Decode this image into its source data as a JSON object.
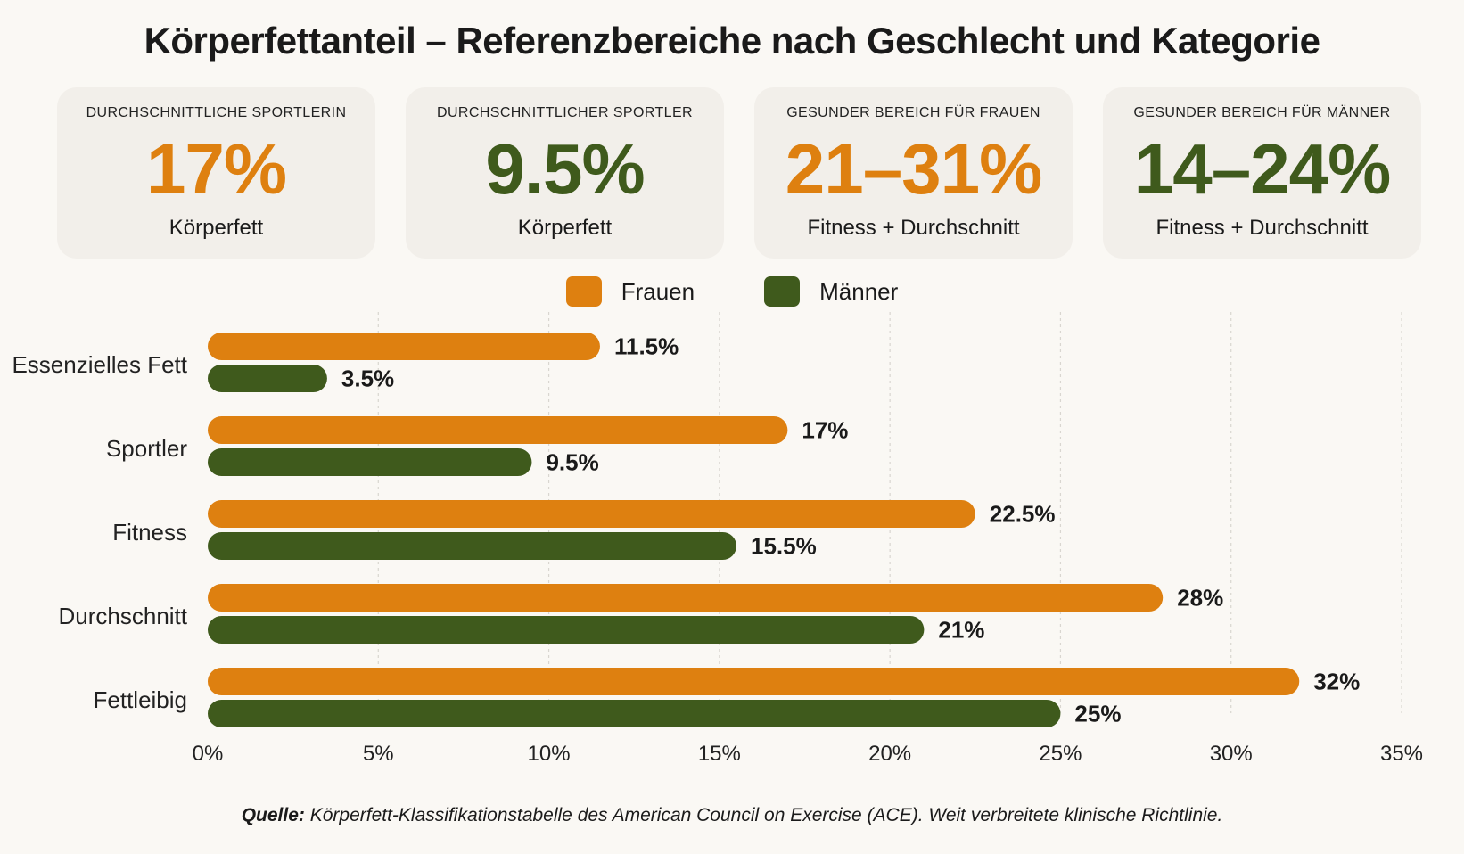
{
  "title": "Körperfettanteil – Referenzbereiche nach Geschlecht und Kategorie",
  "cards": [
    {
      "label": "DURCHSCHNITTLICHE SPORTLERIN",
      "value": "17%",
      "sub": "Körperfett",
      "color": "#de8010"
    },
    {
      "label": "DURCHSCHNITTLICHER SPORTLER",
      "value": "9.5%",
      "sub": "Körperfett",
      "color": "#3f5a1c"
    },
    {
      "label": "GESUNDER BEREICH FÜR FRAUEN",
      "value": "21–31%",
      "sub": "Fitness + Durchschnitt",
      "color": "#de8010"
    },
    {
      "label": "GESUNDER BEREICH FÜR MÄNNER",
      "value": "14–24%",
      "sub": "Fitness + Durchschnitt",
      "color": "#3f5a1c"
    }
  ],
  "source": {
    "label": "Quelle:",
    "text": "Körperfett-Klassifikationstabelle des American Council on Exercise (ACE). Weit verbreitete klinische Richtlinie."
  },
  "chart_data": {
    "type": "bar",
    "orientation": "horizontal",
    "categories": [
      "Essenzielles Fett",
      "Sportler",
      "Fitness",
      "Durchschnitt",
      "Fettleibig"
    ],
    "series": [
      {
        "name": "Frauen",
        "color": "#de8010",
        "values": [
          11.5,
          17,
          22.5,
          28,
          32
        ],
        "labels": [
          "11.5%",
          "17%",
          "22.5%",
          "28%",
          "32%"
        ]
      },
      {
        "name": "Männer",
        "color": "#3f5a1c",
        "values": [
          3.5,
          9.5,
          15.5,
          21,
          25
        ],
        "labels": [
          "3.5%",
          "9.5%",
          "15.5%",
          "21%",
          "25%"
        ]
      }
    ],
    "xlim": [
      0,
      35
    ],
    "xticks": [
      0,
      5,
      10,
      15,
      20,
      25,
      30,
      35
    ],
    "xtick_labels": [
      "0%",
      "5%",
      "10%",
      "15%",
      "20%",
      "25%",
      "30%",
      "35%"
    ],
    "grid": true,
    "legend": "top-center"
  }
}
